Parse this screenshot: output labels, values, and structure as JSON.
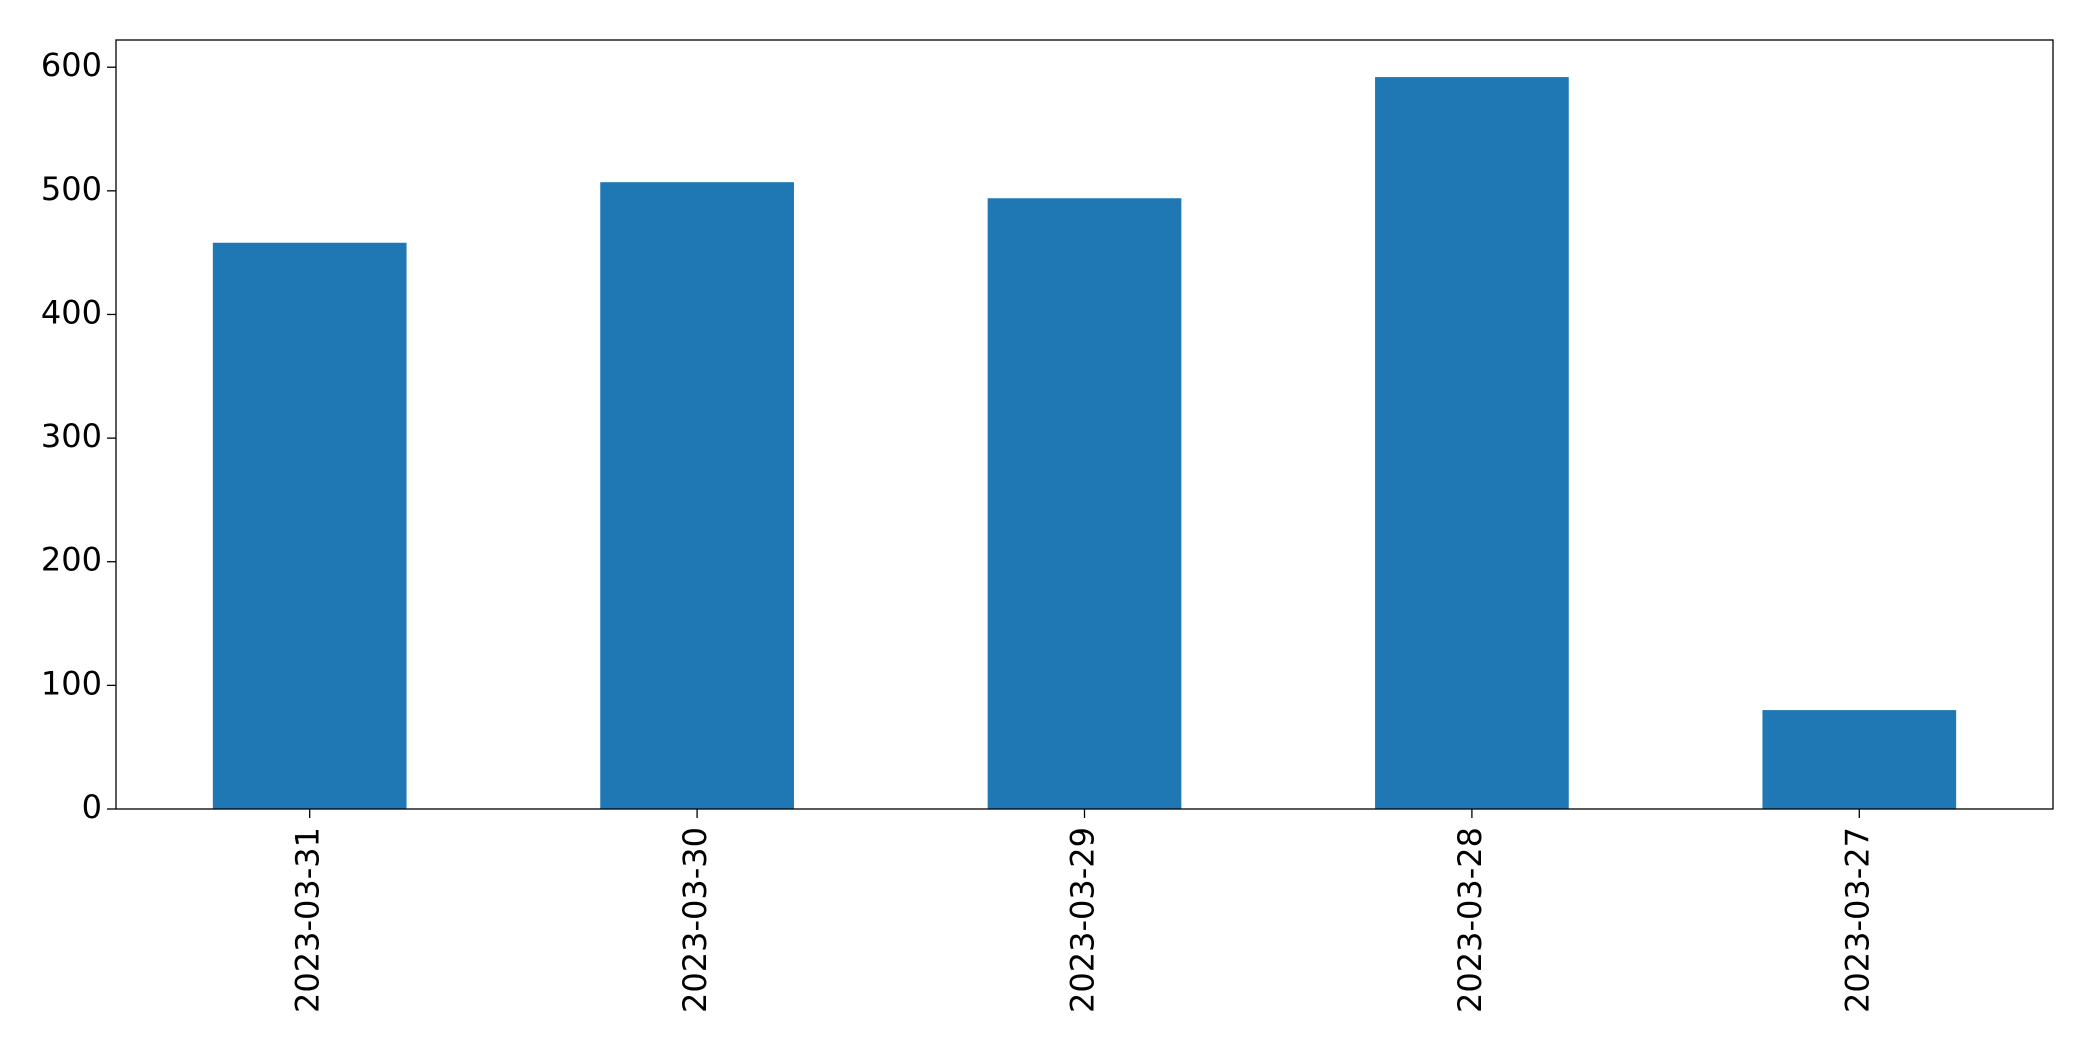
{
  "chart_data": {
    "type": "bar",
    "categories": [
      "2023-03-31",
      "2023-03-30",
      "2023-03-29",
      "2023-03-28",
      "2023-03-27"
    ],
    "values": [
      458,
      507,
      494,
      592,
      80
    ],
    "color": "#1f77b4",
    "ylim": [
      0,
      622
    ],
    "yticks": [
      0,
      100,
      200,
      300,
      400,
      500,
      600
    ],
    "grid": false
  }
}
